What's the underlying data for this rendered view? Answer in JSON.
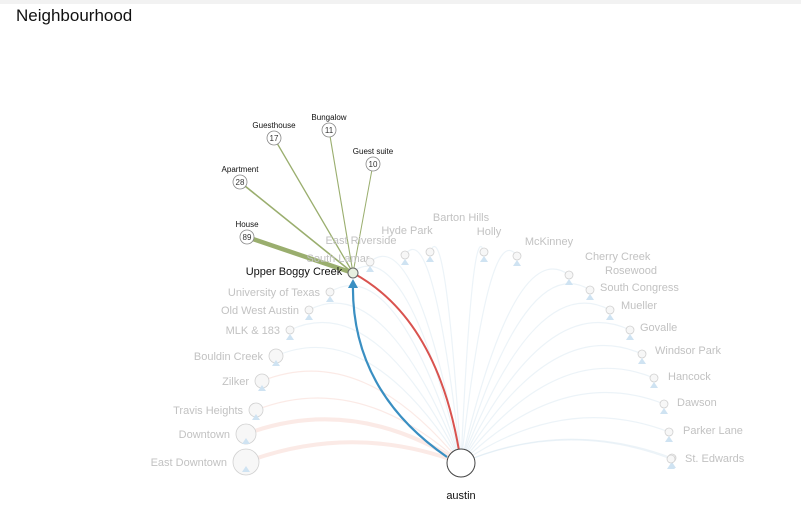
{
  "page": {
    "title": "Neighbourhood"
  },
  "city": {
    "name": "austin"
  },
  "selected": {
    "name": "Upper Boggy Creek"
  },
  "neighbourhoods": [
    "East Downtown",
    "Downtown",
    "Travis Heights",
    "Zilker",
    "Bouldin Creek",
    "MLK & 183",
    "Old West Austin",
    "University of Texas",
    "South Lamar",
    "East Riverside",
    "Hyde Park",
    "Barton Hills",
    "Holly",
    "McKinney",
    "Cherry Creek",
    "Rosewood",
    "South Congress",
    "Mueller",
    "Govalle",
    "Windsor Park",
    "Hancock",
    "Dawson",
    "Parker Lane",
    "St. Edwards"
  ],
  "property_types": [
    {
      "name": "House",
      "count": "89"
    },
    {
      "name": "Apartment",
      "count": "28"
    },
    {
      "name": "Guesthouse",
      "count": "17"
    },
    {
      "name": "Bungalow",
      "count": "11"
    },
    {
      "name": "Guest suite",
      "count": "10"
    }
  ],
  "colors": {
    "outgoing": "#d9534f",
    "incoming": "#3a8fc2",
    "type_link": "#9aae6e",
    "faint": "#dde9f3",
    "faint_red": "#f7d9d2"
  }
}
